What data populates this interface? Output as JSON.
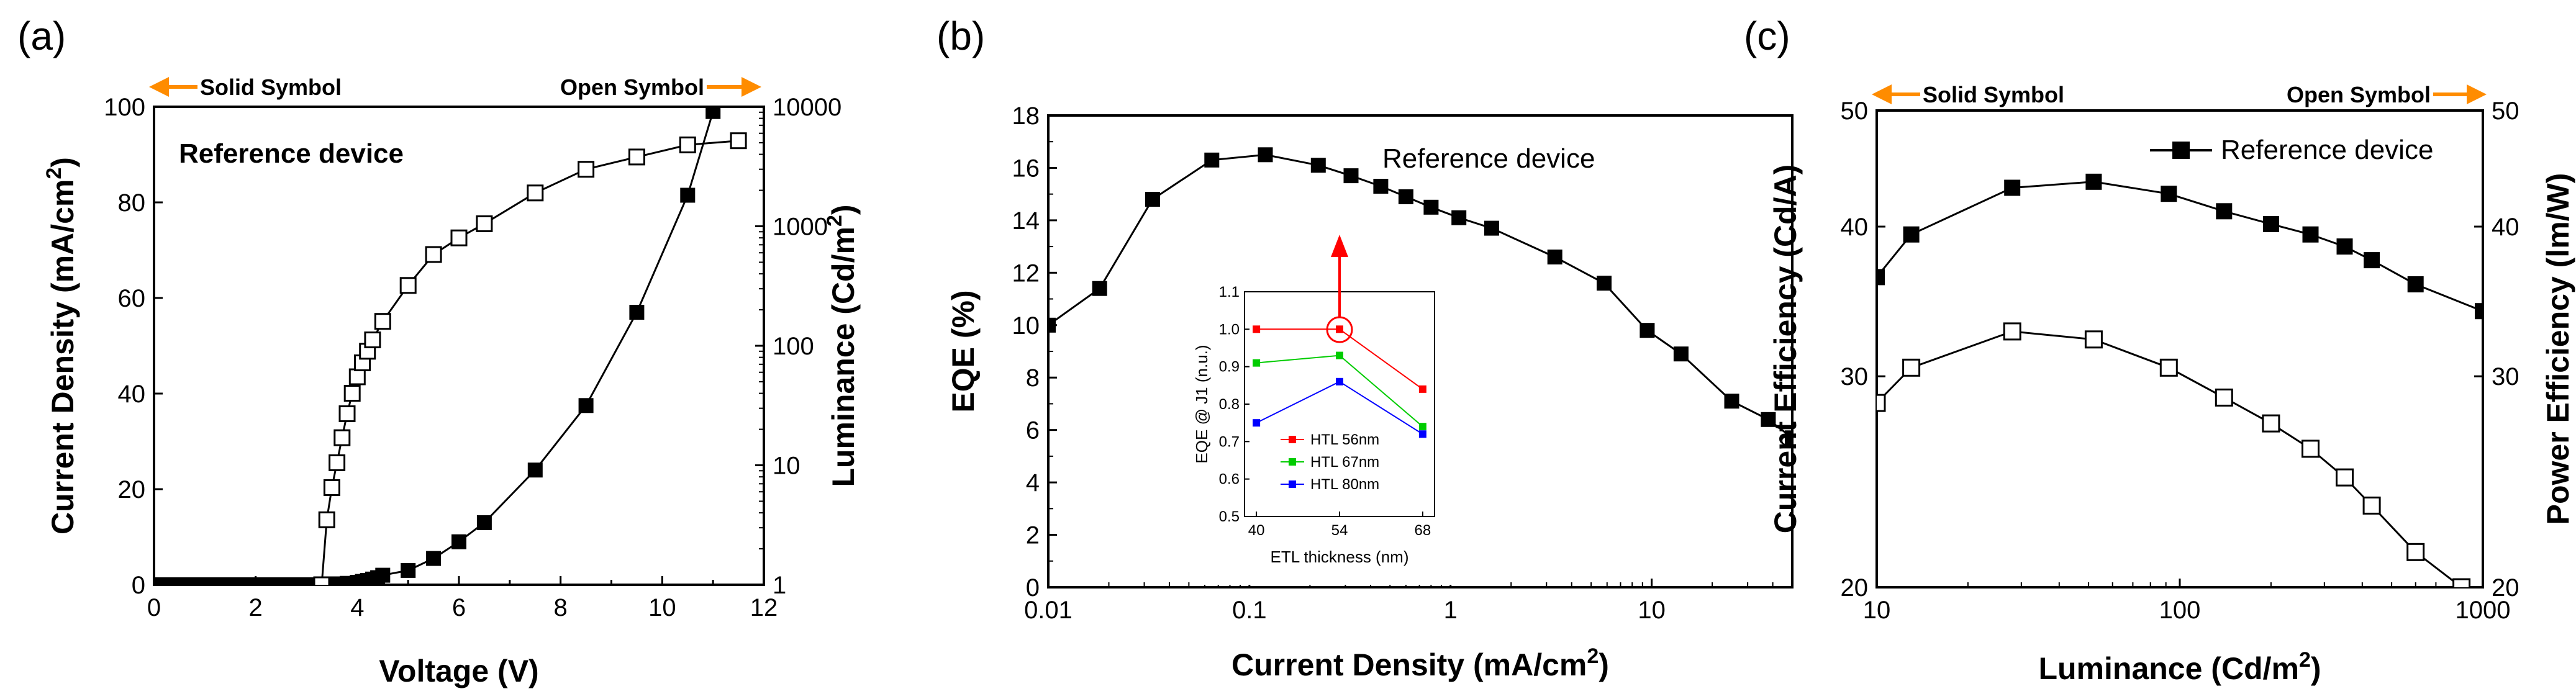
{
  "chart_data": [
    {
      "panel": "(a)",
      "type": "line",
      "xlabel": "Voltage (V)",
      "ylabel": "Current Density (mA/cm²)",
      "ylabel_right": "Luminance (Cd/m²)",
      "xlim": [
        0,
        12
      ],
      "ylim": [
        0,
        100
      ],
      "ylim_right": [
        1,
        10000
      ],
      "yscale_right": "log",
      "xticks": [
        "0",
        "2",
        "4",
        "6",
        "8",
        "10",
        "12"
      ],
      "yticks": [
        "0",
        "20",
        "40",
        "60",
        "80",
        "100"
      ],
      "yticks_right": [
        "1",
        "10",
        "100",
        "1000",
        "10000"
      ],
      "annotation": "Reference device",
      "left_arrow_label": "Solid Symbol",
      "right_arrow_label": "Open Symbol",
      "series": [
        {
          "name": "Current Density",
          "marker": "filled-square",
          "axis": "left",
          "x": [
            0,
            0.2,
            0.4,
            0.6,
            0.8,
            1.0,
            1.2,
            1.4,
            1.6,
            1.8,
            2.0,
            2.2,
            2.4,
            2.6,
            2.8,
            3.0,
            3.2,
            3.4,
            3.6,
            3.8,
            4.0,
            4.1,
            4.2,
            4.3,
            4.4,
            4.5,
            5.0,
            5.5,
            6.0,
            6.5,
            7.5,
            8.5,
            9.5,
            10.5,
            11.0
          ],
          "y": [
            0,
            0,
            0,
            0,
            0,
            0,
            0,
            0,
            0,
            0,
            0,
            0,
            0,
            0,
            0,
            0,
            0,
            0.1,
            0.2,
            0.3,
            0.5,
            0.7,
            0.9,
            1.2,
            1.5,
            2.0,
            3.0,
            5.5,
            9.0,
            13.0,
            24.0,
            37.5,
            57.0,
            81.5,
            99.0
          ]
        },
        {
          "name": "Luminance",
          "marker": "open-square",
          "axis": "right",
          "x": [
            3.3,
            3.4,
            3.5,
            3.6,
            3.7,
            3.8,
            3.9,
            4.0,
            4.1,
            4.2,
            4.3,
            4.5,
            5.0,
            5.5,
            6.0,
            6.5,
            7.5,
            8.5,
            9.5,
            10.5,
            11.5
          ],
          "y": [
            1.0,
            3.5,
            6.5,
            10.5,
            17,
            27,
            40,
            55,
            72,
            90,
            112,
            160,
            320,
            580,
            800,
            1050,
            1900,
            3000,
            3800,
            4800,
            5200
          ]
        }
      ]
    },
    {
      "panel": "(b)",
      "type": "line",
      "xlabel": "Current Density (mA/cm²)",
      "ylabel": "EQE (%)",
      "xscale": "log",
      "xlim": [
        0.01,
        50
      ],
      "ylim": [
        0,
        18
      ],
      "xticks": [
        "0.01",
        "0.1",
        "1",
        "10"
      ],
      "yticks": [
        "0",
        "2",
        "4",
        "6",
        "8",
        "10",
        "12",
        "14",
        "16",
        "18"
      ],
      "annotation": "Reference device",
      "series": [
        {
          "name": "EQE",
          "marker": "filled-square",
          "x": [
            0.01,
            0.018,
            0.033,
            0.065,
            0.12,
            0.22,
            0.32,
            0.45,
            0.6,
            0.8,
            1.1,
            1.6,
            3.3,
            5.8,
            9.5,
            14,
            25,
            38,
            50
          ],
          "y": [
            10.0,
            11.4,
            14.8,
            16.3,
            16.5,
            16.1,
            15.7,
            15.3,
            14.9,
            14.5,
            14.1,
            13.7,
            12.6,
            11.6,
            9.8,
            8.9,
            7.1,
            6.4,
            5.7
          ]
        }
      ],
      "inset": {
        "xlabel": "ETL thickness (nm)",
        "ylabel": "EQE @ J1 (n.u.)",
        "xticks": [
          "40",
          "54",
          "68"
        ],
        "yticks": [
          "0.5",
          "0.6",
          "0.7",
          "0.8",
          "0.9",
          "1.0",
          "1.1"
        ],
        "xlim": [
          38,
          70
        ],
        "ylim": [
          0.5,
          1.1
        ],
        "series": [
          {
            "name": "HTL 56nm",
            "color": "#ff0000",
            "x": [
              40,
              54,
              68
            ],
            "y": [
              1.0,
              1.0,
              0.84
            ]
          },
          {
            "name": "HTL 67nm",
            "color": "#00cc00",
            "x": [
              40,
              54,
              68
            ],
            "y": [
              0.91,
              0.93,
              0.74
            ]
          },
          {
            "name": "HTL 80nm",
            "color": "#0000ff",
            "x": [
              40,
              54,
              68
            ],
            "y": [
              0.75,
              0.86,
              0.72
            ]
          }
        ]
      }
    },
    {
      "panel": "(c)",
      "type": "line",
      "xlabel": "Luminance (Cd/m²)",
      "ylabel": "Current Efficiency (Cd/A)",
      "ylabel_right": "Power Efficiency (lm/W)",
      "xscale": "log",
      "yscale": "log",
      "xlim": [
        10,
        1000
      ],
      "ylim": [
        20,
        50
      ],
      "ylim_right": [
        20,
        50
      ],
      "xticks": [
        "10",
        "100",
        "1000"
      ],
      "yticks": [
        "20",
        "30",
        "40",
        "50"
      ],
      "yticks_right": [
        "20",
        "30",
        "40",
        "50"
      ],
      "legend": "Reference device",
      "left_arrow_label": "Solid Symbol",
      "right_arrow_label": "Open Symbol",
      "series": [
        {
          "name": "Current Efficiency",
          "marker": "filled-square",
          "axis": "left",
          "x": [
            10,
            13,
            28,
            52,
            92,
            140,
            200,
            270,
            350,
            430,
            600,
            1000
          ],
          "y": [
            36.3,
            39.4,
            43.1,
            43.6,
            42.6,
            41.2,
            40.2,
            39.4,
            38.5,
            37.5,
            35.8,
            34.0
          ]
        },
        {
          "name": "Power Efficiency",
          "marker": "open-square",
          "axis": "right",
          "x": [
            10,
            13,
            28,
            52,
            92,
            140,
            200,
            270,
            350,
            430,
            600,
            850
          ],
          "y": [
            28.5,
            30.5,
            32.7,
            32.2,
            30.5,
            28.8,
            27.4,
            26.1,
            24.7,
            23.4,
            21.4,
            20.0
          ]
        }
      ]
    }
  ]
}
